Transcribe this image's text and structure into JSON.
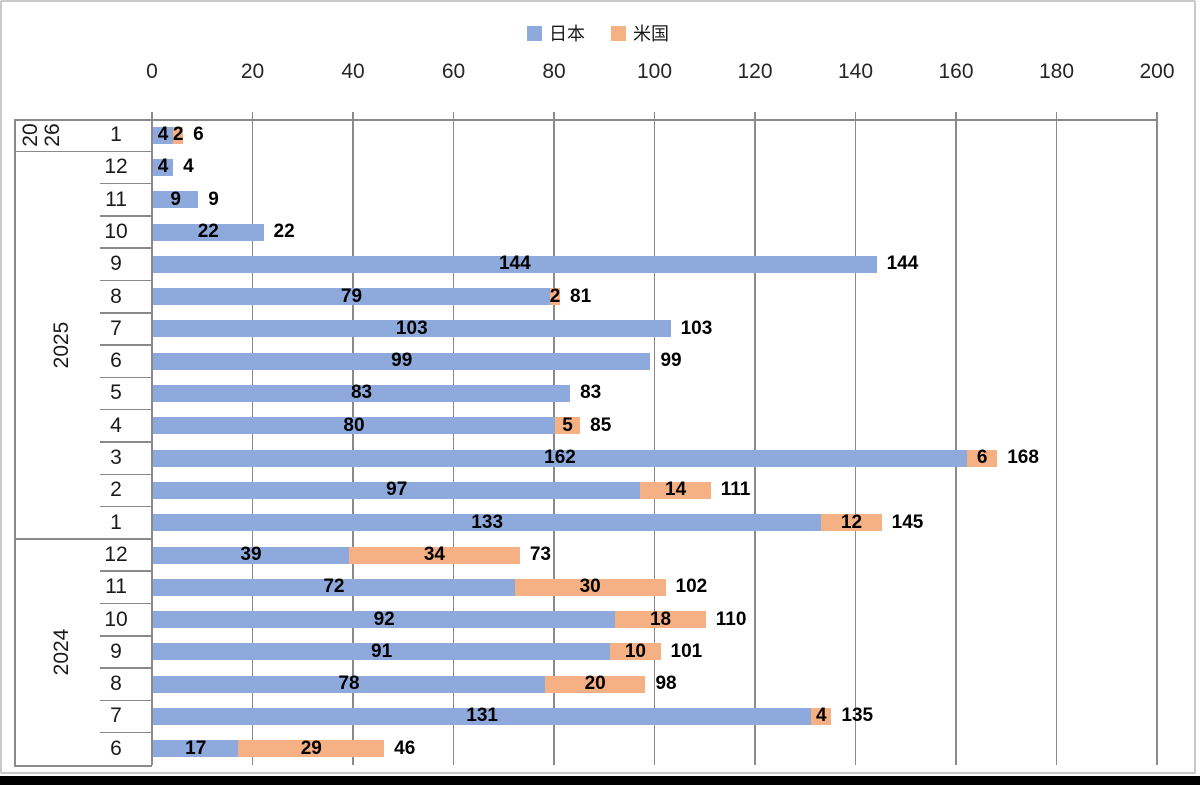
{
  "chart_data": {
    "type": "bar",
    "orientation": "horizontal",
    "stacked": true,
    "title": "",
    "xlabel": "",
    "ylabel": "",
    "xlim": [
      0,
      200
    ],
    "x_ticks": [
      0,
      20,
      40,
      60,
      80,
      100,
      120,
      140,
      160,
      180,
      200
    ],
    "grid": true,
    "legend_position": "top",
    "legend": [
      {
        "name": "日本",
        "color": "#8EA9DC"
      },
      {
        "name": "米国",
        "color": "#F5B183"
      }
    ],
    "groups": [
      {
        "year": "2026",
        "rows": [
          {
            "month": "1",
            "japan": 4,
            "usa": 2,
            "total": 6
          }
        ]
      },
      {
        "year": "2025",
        "rows": [
          {
            "month": "12",
            "japan": 4,
            "usa": 0,
            "total": 4
          },
          {
            "month": "11",
            "japan": 9,
            "usa": 0,
            "total": 9
          },
          {
            "month": "10",
            "japan": 22,
            "usa": 0,
            "total": 22
          },
          {
            "month": "9",
            "japan": 144,
            "usa": 0,
            "total": 144
          },
          {
            "month": "8",
            "japan": 79,
            "usa": 2,
            "total": 81
          },
          {
            "month": "7",
            "japan": 103,
            "usa": 0,
            "total": 103
          },
          {
            "month": "6",
            "japan": 99,
            "usa": 0,
            "total": 99
          },
          {
            "month": "5",
            "japan": 83,
            "usa": 0,
            "total": 83
          },
          {
            "month": "4",
            "japan": 80,
            "usa": 5,
            "total": 85
          },
          {
            "month": "3",
            "japan": 162,
            "usa": 6,
            "total": 168
          },
          {
            "month": "2",
            "japan": 97,
            "usa": 14,
            "total": 111
          },
          {
            "month": "1",
            "japan": 133,
            "usa": 12,
            "total": 145
          }
        ]
      },
      {
        "year": "2024",
        "rows": [
          {
            "month": "12",
            "japan": 39,
            "usa": 34,
            "total": 73
          },
          {
            "month": "11",
            "japan": 72,
            "usa": 30,
            "total": 102
          },
          {
            "month": "10",
            "japan": 92,
            "usa": 18,
            "total": 110
          },
          {
            "month": "9",
            "japan": 91,
            "usa": 10,
            "total": 101
          },
          {
            "month": "8",
            "japan": 78,
            "usa": 20,
            "total": 98
          },
          {
            "month": "7",
            "japan": 131,
            "usa": 4,
            "total": 135
          },
          {
            "month": "6",
            "japan": 17,
            "usa": 29,
            "total": 46
          }
        ]
      }
    ]
  },
  "colors": {
    "japan_bar": "#8EA9DC",
    "usa_bar": "#F5B183",
    "gridline": "#8a8a8a",
    "data_label": "#000000",
    "axis_text": "#262626",
    "frame_border": "#c9c9c9",
    "bottom_strip": "#000000"
  }
}
